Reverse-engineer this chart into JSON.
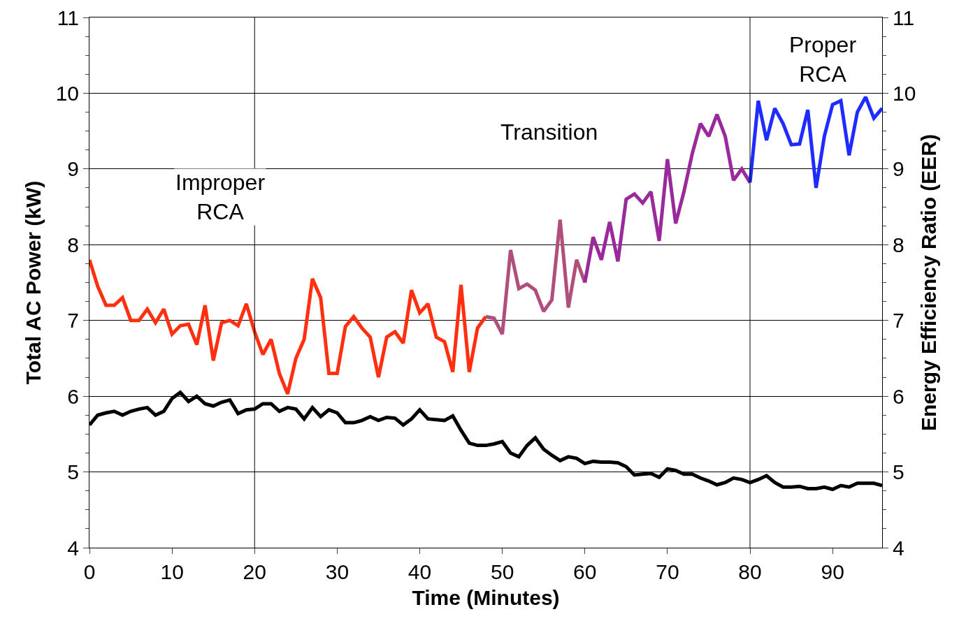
{
  "chart_data": {
    "type": "line",
    "xlabel": "Time (Minutes)",
    "ylabel": "Total AC Power (kW)",
    "y2label": "Energy Efficiency Ratio (EER)",
    "xlim": [
      0,
      96
    ],
    "xticks": [
      0,
      10,
      20,
      30,
      40,
      50,
      60,
      70,
      80,
      90
    ],
    "ylim": [
      4,
      11
    ],
    "yticks": [
      4,
      5,
      6,
      7,
      8,
      9,
      10,
      11
    ],
    "y2lim": [
      4,
      11
    ],
    "y2ticks": [
      4,
      5,
      6,
      7,
      8,
      9,
      10,
      11
    ],
    "grid": "y",
    "marker": "none",
    "line_style": "solid",
    "annotations": [
      "Improper RCA",
      "Transition",
      "Proper RCA"
    ],
    "ref_lines": [
      {
        "axis": "x",
        "value": 20,
        "color": "#000000"
      },
      {
        "axis": "x",
        "value": 80,
        "color": "#000000"
      }
    ],
    "series": [
      {
        "color": "#000000",
        "x": [
          0,
          1,
          2,
          3,
          4,
          5,
          6,
          7,
          8,
          9,
          10,
          11,
          12,
          13,
          14,
          15,
          16,
          17,
          18,
          19,
          20,
          21,
          22,
          23,
          24,
          25,
          26,
          27,
          28,
          29,
          30,
          31,
          32,
          33,
          34,
          35,
          36,
          37,
          38,
          39,
          40,
          41,
          42,
          43,
          44,
          45,
          46,
          47,
          48,
          49,
          50,
          51,
          52,
          53,
          54,
          55,
          56,
          57,
          58,
          59,
          60,
          61,
          62,
          63,
          64,
          65,
          66,
          67,
          68,
          69,
          70,
          71,
          72,
          73,
          74,
          75,
          76,
          77,
          78,
          79,
          80,
          81,
          82,
          83,
          84,
          85,
          86,
          87,
          88,
          89,
          90,
          91,
          92,
          93,
          94,
          95,
          96
        ],
        "values": [
          5.62,
          5.75,
          5.78,
          5.8,
          5.75,
          5.8,
          5.83,
          5.85,
          5.75,
          5.8,
          5.97,
          6.05,
          5.93,
          6.0,
          5.9,
          5.87,
          5.92,
          5.95,
          5.77,
          5.82,
          5.83,
          5.9,
          5.9,
          5.8,
          5.85,
          5.83,
          5.7,
          5.85,
          5.73,
          5.82,
          5.78,
          5.65,
          5.65,
          5.68,
          5.73,
          5.68,
          5.72,
          5.71,
          5.62,
          5.7,
          5.82,
          5.7,
          5.69,
          5.68,
          5.74,
          5.55,
          5.38,
          5.35,
          5.35,
          5.37,
          5.4,
          5.25,
          5.2,
          5.35,
          5.45,
          5.3,
          5.22,
          5.15,
          5.2,
          5.18,
          5.11,
          5.14,
          5.13,
          5.13,
          5.12,
          5.07,
          4.96,
          4.97,
          4.98,
          4.93,
          5.04,
          5.02,
          4.97,
          4.97,
          4.92,
          4.88,
          4.83,
          4.86,
          4.92,
          4.9,
          4.86,
          4.9,
          4.95,
          4.86,
          4.8,
          4.8,
          4.81,
          4.78,
          4.78,
          4.8,
          4.77,
          4.82,
          4.8,
          4.85,
          4.85,
          4.85,
          4.82
        ]
      },
      {
        "color": "#ff3010",
        "axis": "y2",
        "x": [
          0,
          1,
          2,
          3,
          4,
          5,
          6,
          7,
          8,
          9,
          10,
          11,
          12,
          13,
          14,
          15,
          16,
          17,
          18,
          19,
          20,
          21,
          22,
          23,
          24,
          25,
          26,
          27,
          28,
          29,
          30,
          31,
          32,
          33,
          34,
          35,
          36,
          37,
          38,
          39,
          40,
          41,
          42,
          43,
          44,
          45,
          46,
          47,
          48
        ],
        "values": [
          7.8,
          7.45,
          7.2,
          7.2,
          7.3,
          7.0,
          7.0,
          7.15,
          6.97,
          7.15,
          6.82,
          6.93,
          6.95,
          6.68,
          7.2,
          6.47,
          6.97,
          7.0,
          6.93,
          7.22,
          6.85,
          6.55,
          6.75,
          6.3,
          6.03,
          6.5,
          6.75,
          7.55,
          7.3,
          6.3,
          6.3,
          6.92,
          7.05,
          6.9,
          6.78,
          6.25,
          6.78,
          6.85,
          6.7,
          7.4,
          7.1,
          7.22,
          6.78,
          6.72,
          6.32,
          7.47,
          6.32,
          6.9,
          7.05
        ]
      },
      {
        "color": "#b04f7c",
        "axis": "y2",
        "x": [
          48,
          49,
          50,
          51,
          52,
          53,
          54,
          55,
          56,
          57,
          58,
          59,
          60
        ],
        "values": [
          7.05,
          7.03,
          6.82,
          7.93,
          7.42,
          7.48,
          7.4,
          7.12,
          7.27,
          8.33,
          7.17,
          7.8,
          7.5
        ]
      },
      {
        "color": "#9a2a9c",
        "axis": "y2",
        "x": [
          60,
          61,
          62,
          63,
          64,
          65,
          66,
          67,
          68,
          69,
          70,
          71,
          72,
          73,
          74,
          75,
          76,
          77,
          78,
          79,
          80
        ],
        "values": [
          7.5,
          8.1,
          7.8,
          8.3,
          7.78,
          8.6,
          8.67,
          8.55,
          8.7,
          8.05,
          9.13,
          8.28,
          8.7,
          9.2,
          9.6,
          9.43,
          9.72,
          9.43,
          8.85,
          9.0,
          8.82
        ]
      },
      {
        "color": "#1f2cff",
        "axis": "y2",
        "x": [
          80,
          81,
          82,
          83,
          84,
          85,
          86,
          87,
          88,
          89,
          90,
          91,
          92,
          93,
          94,
          95,
          96
        ],
        "values": [
          8.82,
          9.9,
          9.38,
          9.8,
          9.6,
          9.32,
          9.33,
          9.78,
          8.75,
          9.43,
          9.85,
          9.9,
          9.18,
          9.75,
          9.95,
          9.67,
          9.8
        ]
      }
    ]
  }
}
